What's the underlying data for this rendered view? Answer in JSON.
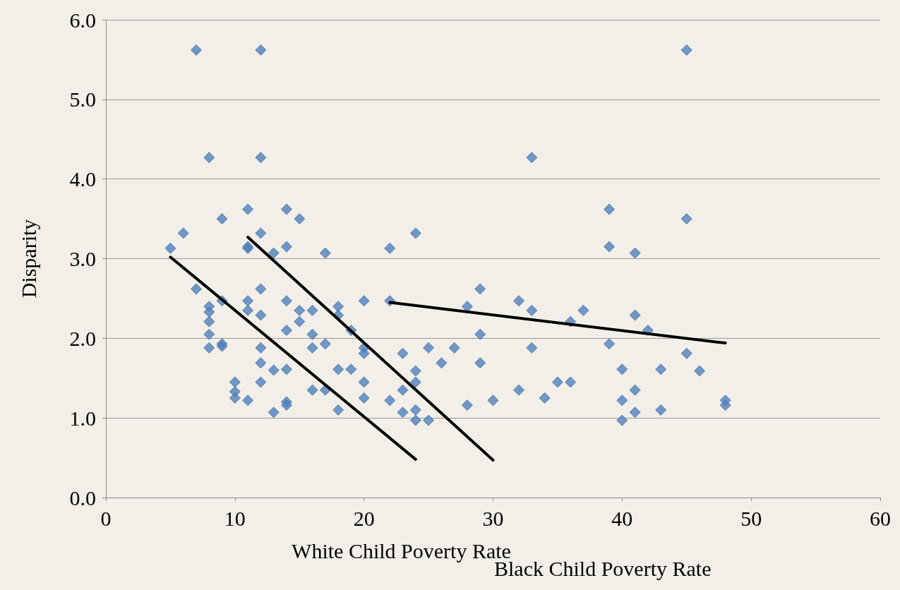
{
  "chart_data": {
    "type": "scatter",
    "xlabel": "White Child Poverty Rate",
    "ylabel": "Disparity",
    "annotations": [
      "Black Child Poverty Rate"
    ],
    "xlim": [
      0,
      60
    ],
    "xticks": [
      0,
      10,
      20,
      30,
      40,
      50,
      60
    ],
    "ylim": [
      0,
      6
    ],
    "yticks": [
      {
        "value": 0,
        "label": "0.0"
      },
      {
        "value": 1,
        "label": "1.0"
      },
      {
        "value": 2,
        "label": "2.0"
      },
      {
        "value": 3,
        "label": "3.0"
      },
      {
        "value": 4,
        "label": "4.0"
      },
      {
        "value": 5,
        "label": "5.0"
      },
      {
        "value": 6,
        "label": "6.0"
      }
    ],
    "grid": "y",
    "series": [
      {
        "color": "#4f81bd",
        "marker": "diamond",
        "x": [
          7,
          12,
          45,
          8,
          12,
          33,
          11,
          14,
          39,
          9,
          15,
          45,
          6,
          12,
          24,
          5,
          11,
          11,
          14,
          22,
          39,
          13,
          17,
          41,
          7,
          12,
          29,
          9,
          11,
          14,
          20,
          22,
          32,
          8,
          18,
          28,
          8,
          11,
          15,
          16,
          33,
          37,
          12,
          18,
          41,
          8,
          15,
          36,
          14,
          19,
          42,
          8,
          16,
          29,
          9,
          17,
          39,
          8,
          9,
          12,
          16,
          20,
          25,
          27,
          33,
          20,
          23,
          45,
          12,
          26,
          29,
          14,
          18,
          19,
          24,
          40,
          43,
          46,
          13,
          10,
          12,
          20,
          24,
          35,
          36,
          10,
          16,
          17,
          23,
          32,
          41,
          10,
          20,
          34,
          11,
          14,
          22,
          30,
          40,
          48,
          14,
          28,
          48,
          18,
          24,
          43,
          13,
          23,
          41,
          24,
          25,
          40
        ],
        "values": [
          5.62,
          5.62,
          5.62,
          4.27,
          4.27,
          4.27,
          3.62,
          3.62,
          3.62,
          3.5,
          3.5,
          3.5,
          3.32,
          3.32,
          3.32,
          3.13,
          3.13,
          3.15,
          3.15,
          3.13,
          3.15,
          3.07,
          3.07,
          3.07,
          2.62,
          2.62,
          2.62,
          2.47,
          2.47,
          2.47,
          2.47,
          2.47,
          2.47,
          2.4,
          2.4,
          2.4,
          2.33,
          2.35,
          2.35,
          2.35,
          2.35,
          2.35,
          2.29,
          2.29,
          2.29,
          2.21,
          2.21,
          2.21,
          2.1,
          2.1,
          2.1,
          2.05,
          2.05,
          2.05,
          1.93,
          1.93,
          1.93,
          1.88,
          1.9,
          1.88,
          1.88,
          1.88,
          1.88,
          1.88,
          1.88,
          1.81,
          1.81,
          1.81,
          1.69,
          1.69,
          1.69,
          1.61,
          1.61,
          1.61,
          1.59,
          1.61,
          1.61,
          1.59,
          1.6,
          1.45,
          1.45,
          1.45,
          1.45,
          1.45,
          1.45,
          1.33,
          1.35,
          1.35,
          1.35,
          1.35,
          1.35,
          1.25,
          1.25,
          1.25,
          1.22,
          1.2,
          1.22,
          1.22,
          1.22,
          1.22,
          1.16,
          1.16,
          1.16,
          1.1,
          1.1,
          1.1,
          1.07,
          1.07,
          1.07,
          0.97,
          0.97,
          0.97
        ]
      },
      {
        "type": "line",
        "color": "#000000",
        "marker": "none",
        "x": [
          5,
          24
        ],
        "values": [
          3.02,
          0.48
        ]
      },
      {
        "type": "line",
        "color": "#000000",
        "marker": "none",
        "x": [
          11,
          30
        ],
        "values": [
          3.27,
          0.47
        ]
      },
      {
        "type": "line",
        "color": "#000000",
        "marker": "none",
        "x": [
          22,
          48
        ],
        "values": [
          2.45,
          1.94
        ]
      }
    ]
  }
}
